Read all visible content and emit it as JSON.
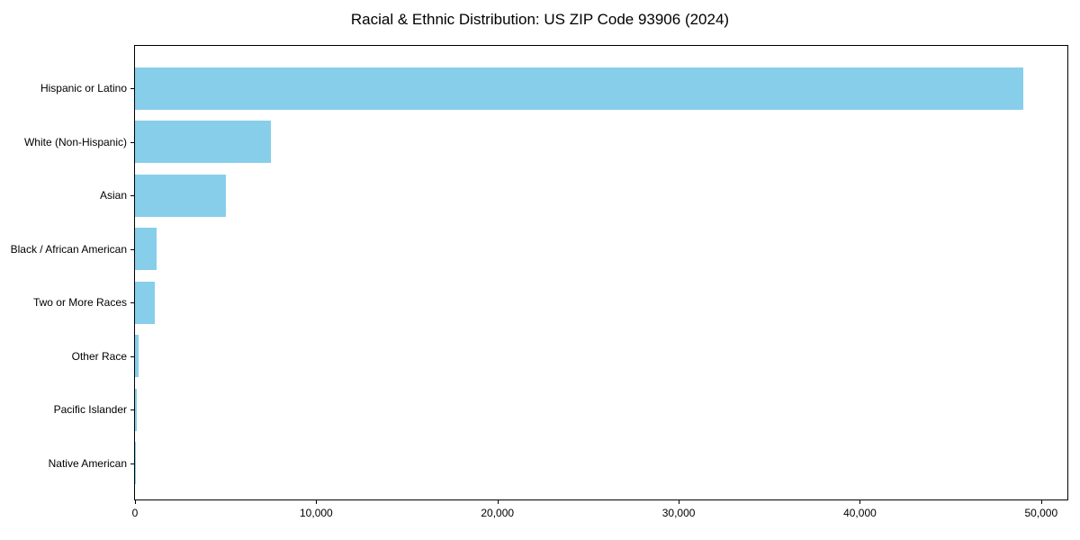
{
  "page": {
    "background_color": "#ffffff",
    "text_color": "#000000"
  },
  "chart_data": {
    "type": "bar",
    "orientation": "horizontal",
    "title": "Racial & Ethnic Distribution: US ZIP Code 93906 (2024)",
    "xlabel": "",
    "ylabel": "",
    "categories": [
      "Hispanic or Latino",
      "White (Non-Hispanic)",
      "Asian",
      "Black / African American",
      "Two or More Races",
      "Other Race",
      "Pacific Islander",
      "Native American"
    ],
    "values": [
      49000,
      7500,
      5000,
      1200,
      1100,
      180,
      75,
      25
    ],
    "xlim": [
      0,
      51450
    ],
    "xticks": [
      0,
      10000,
      20000,
      30000,
      40000,
      50000
    ],
    "xtick_labels": [
      "0",
      "10,000",
      "20,000",
      "30,000",
      "40,000",
      "50,000"
    ],
    "bar_color": "#87CEEB",
    "frame_color": "#000000",
    "grid": false,
    "legend": null
  }
}
